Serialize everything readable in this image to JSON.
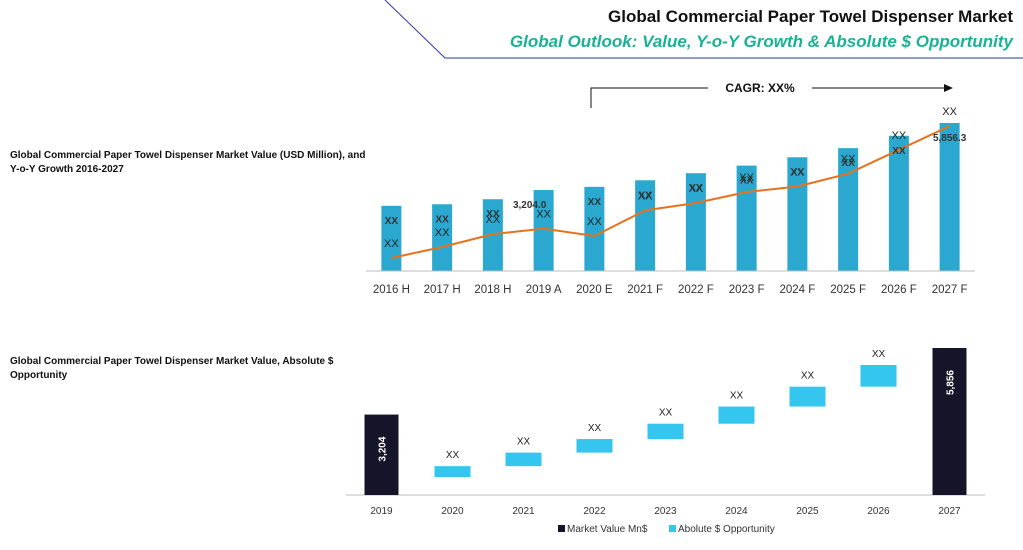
{
  "header": {
    "title": "Global Commercial Paper Towel Dispenser Market",
    "subtitle": "Global Outlook: Value, Y-o-Y Growth & Absolute $ Opportunity"
  },
  "colors": {
    "bar": "#2aa8cf",
    "line": "#e8721c",
    "dark_bar": "#15152a",
    "opportunity": "#34c6ee",
    "subtitle": "#19b394"
  },
  "chart_data": [
    {
      "type": "bar",
      "side_label": "Global Commercial Paper Towel Dispenser Market Value (USD Million), and Y-o-Y Growth 2016-2027",
      "cagr_label": "CAGR: XX%",
      "categories": [
        "2016 H",
        "2017 H",
        "2018 H",
        "2019 A",
        "2020 E",
        "2021 F",
        "2022 F",
        "2023 F",
        "2024 F",
        "2025 F",
        "2026 F",
        "2027 F"
      ],
      "series": [
        {
          "type": "bar",
          "values": [
            2580,
            2640,
            2840,
            3204,
            3330,
            3590,
            3870,
            4170,
            4500,
            4860,
            5350,
            5856.3
          ],
          "labels": [
            "XX",
            "XX",
            "XX",
            "3,204.0",
            "XX",
            "XX",
            "XX",
            "XX",
            "XX",
            "XX",
            "XX",
            "5,856.3"
          ]
        },
        {
          "type": "line",
          "values": [
            2.0,
            2.3,
            2.65,
            2.8,
            2.6,
            3.3,
            3.5,
            3.8,
            3.95,
            4.3,
            4.95,
            5.6
          ],
          "labels": [
            "XX",
            "XX",
            "XX",
            "XX",
            "XX",
            "XX",
            "XX",
            "XX",
            "XX",
            "XX",
            "XX",
            "XX"
          ]
        }
      ],
      "ylim": [
        0,
        6000
      ]
    },
    {
      "type": "bar",
      "side_label": "Global Commercial Paper Towel Dispenser Market Value, Absolute $ Opportunity",
      "categories": [
        "2019",
        "2020",
        "2021",
        "2022",
        "2023",
        "2024",
        "2025",
        "2026",
        "2027"
      ],
      "market_value": {
        "2019": 3204,
        "2027": 5856
      },
      "market_value_labels": {
        "2019": "3,204",
        "2027": "5,856"
      },
      "opportunity_steps": [
        {
          "category": "2020",
          "base": 3204,
          "delta": 120,
          "label": "XX"
        },
        {
          "category": "2021",
          "base": 3324,
          "delta": 150,
          "label": "XX"
        },
        {
          "category": "2022",
          "base": 3474,
          "delta": 150,
          "label": "XX"
        },
        {
          "category": "2023",
          "base": 3624,
          "delta": 170,
          "label": "XX"
        },
        {
          "category": "2024",
          "base": 3794,
          "delta": 190,
          "label": "XX"
        },
        {
          "category": "2025",
          "base": 3984,
          "delta": 220,
          "label": "XX"
        },
        {
          "category": "2026",
          "base": 4204,
          "delta": 240,
          "label": "XX"
        }
      ],
      "legend": [
        {
          "name": "Market Value Mn$",
          "color": "#15152a"
        },
        {
          "name": "Abolute $ Opportunity",
          "color": "#34c6ee"
        }
      ],
      "legend_position": "bottom",
      "ylim": [
        0,
        6000
      ]
    }
  ]
}
